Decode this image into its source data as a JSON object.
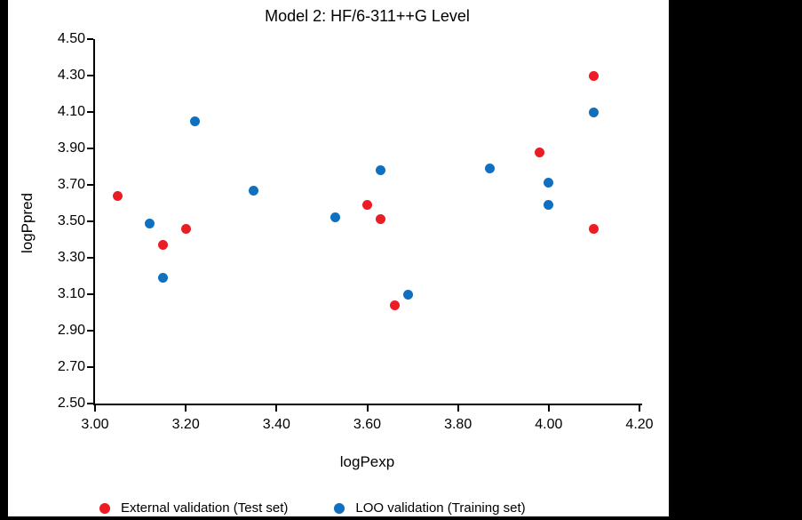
{
  "chart_data": {
    "type": "scatter",
    "title": "Model 2: HF/6-311++G Level",
    "xlabel": "logPexp",
    "ylabel": "logPpred",
    "xlim": [
      3.0,
      4.2
    ],
    "ylim": [
      2.5,
      4.5
    ],
    "x_ticks": [
      "3.00",
      "3.20",
      "3.40",
      "3.60",
      "3.80",
      "4.00",
      "4.20"
    ],
    "y_ticks": [
      "2.50",
      "2.70",
      "2.90",
      "3.10",
      "3.30",
      "3.50",
      "3.70",
      "3.90",
      "4.10",
      "4.30",
      "4.50"
    ],
    "grid": false,
    "legend_position": "bottom",
    "series": [
      {
        "name": "External validation (Test set)",
        "color": "#EC1C24",
        "points": [
          [
            3.05,
            3.64
          ],
          [
            3.15,
            3.37
          ],
          [
            3.2,
            3.46
          ],
          [
            3.6,
            3.59
          ],
          [
            3.63,
            3.51
          ],
          [
            3.66,
            3.04
          ],
          [
            3.98,
            3.88
          ],
          [
            4.1,
            4.3
          ],
          [
            4.1,
            3.46
          ]
        ]
      },
      {
        "name": "LOO validation (Training set)",
        "color": "#1070C0",
        "points": [
          [
            3.12,
            3.49
          ],
          [
            3.15,
            3.19
          ],
          [
            3.22,
            4.05
          ],
          [
            3.35,
            3.67
          ],
          [
            3.53,
            3.52
          ],
          [
            3.63,
            3.78
          ],
          [
            3.69,
            3.1
          ],
          [
            3.87,
            3.79
          ],
          [
            4.0,
            3.71
          ],
          [
            4.0,
            3.59
          ],
          [
            4.1,
            4.1
          ]
        ]
      }
    ]
  }
}
